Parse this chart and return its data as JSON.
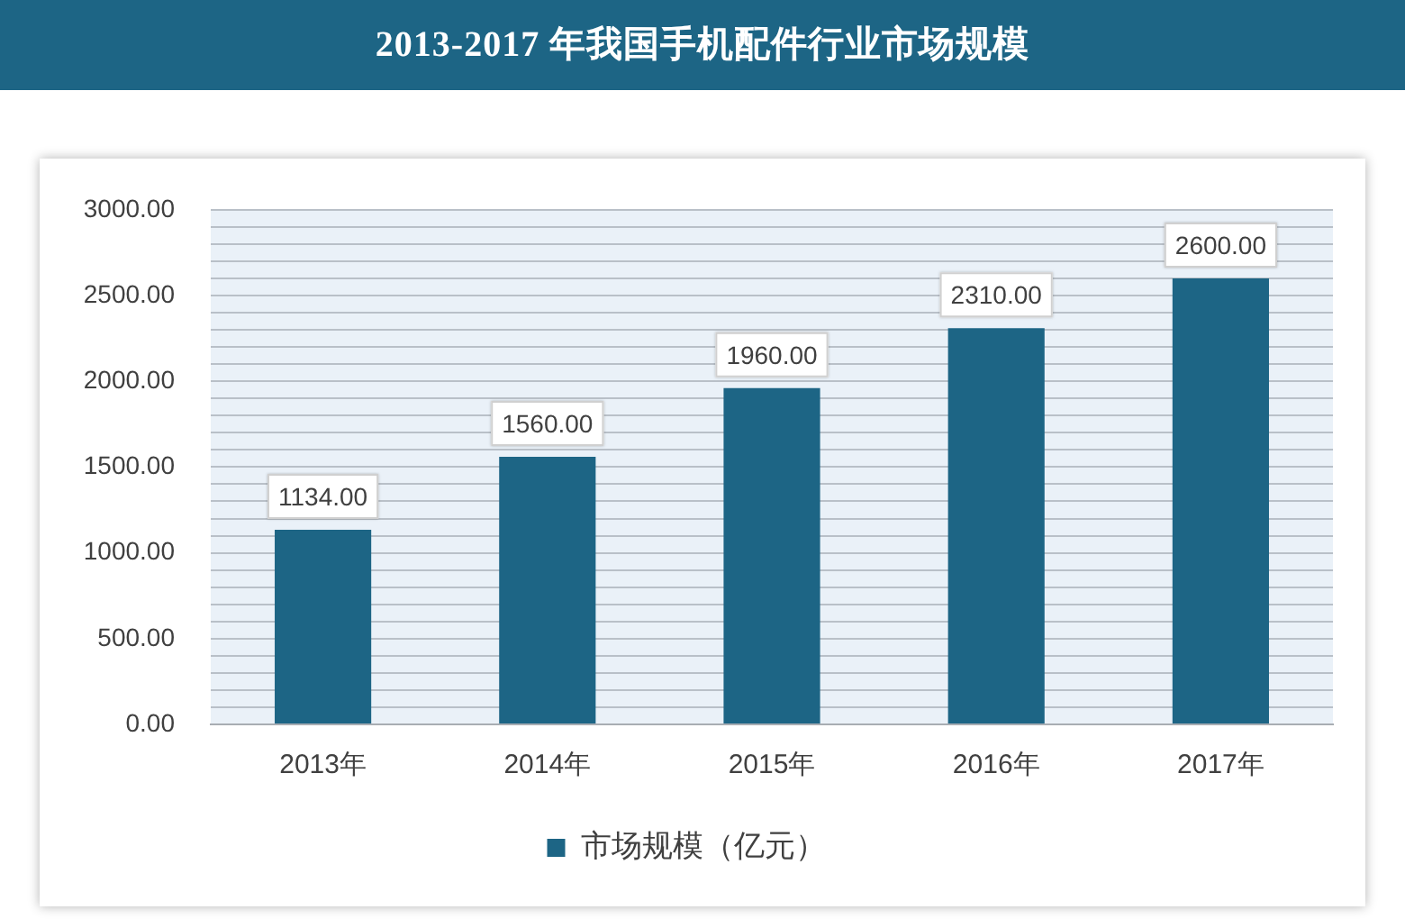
{
  "chart_data": {
    "type": "bar",
    "title": "2013-2017 年我国手机配件行业市场规模",
    "categories": [
      "2013年",
      "2014年",
      "2015年",
      "2016年",
      "2017年"
    ],
    "series": [
      {
        "name": "市场规模（亿元）",
        "color": "#1d6585",
        "values": [
          1134,
          1560,
          1960,
          2310,
          2600
        ],
        "value_labels": [
          "1134.00",
          "1560.00",
          "1960.00",
          "2310.00",
          "2600.00"
        ]
      }
    ],
    "ylim": [
      0,
      3000
    ],
    "yticks": [
      {
        "value": 0,
        "label": "0.00"
      },
      {
        "value": 100,
        "label": null
      },
      {
        "value": 200,
        "label": null
      },
      {
        "value": 300,
        "label": null
      },
      {
        "value": 400,
        "label": null
      },
      {
        "value": 500,
        "label": "500.00"
      },
      {
        "value": 600,
        "label": null
      },
      {
        "value": 700,
        "label": null
      },
      {
        "value": 800,
        "label": null
      },
      {
        "value": 900,
        "label": null
      },
      {
        "value": 1000,
        "label": "1000.00"
      },
      {
        "value": 1100,
        "label": null
      },
      {
        "value": 1200,
        "label": null
      },
      {
        "value": 1300,
        "label": null
      },
      {
        "value": 1400,
        "label": null
      },
      {
        "value": 1500,
        "label": "1500.00"
      },
      {
        "value": 1600,
        "label": null
      },
      {
        "value": 1700,
        "label": null
      },
      {
        "value": 1800,
        "label": null
      },
      {
        "value": 1900,
        "label": null
      },
      {
        "value": 2000,
        "label": "2000.00"
      },
      {
        "value": 2100,
        "label": null
      },
      {
        "value": 2200,
        "label": null
      },
      {
        "value": 2300,
        "label": null
      },
      {
        "value": 2400,
        "label": null
      },
      {
        "value": 2500,
        "label": "2500.00"
      },
      {
        "value": 2600,
        "label": null
      },
      {
        "value": 2700,
        "label": null
      },
      {
        "value": 2800,
        "label": null
      },
      {
        "value": 2900,
        "label": null
      },
      {
        "value": 3000,
        "label": "3000.00"
      }
    ],
    "grid": "y",
    "legend": "bottom"
  }
}
